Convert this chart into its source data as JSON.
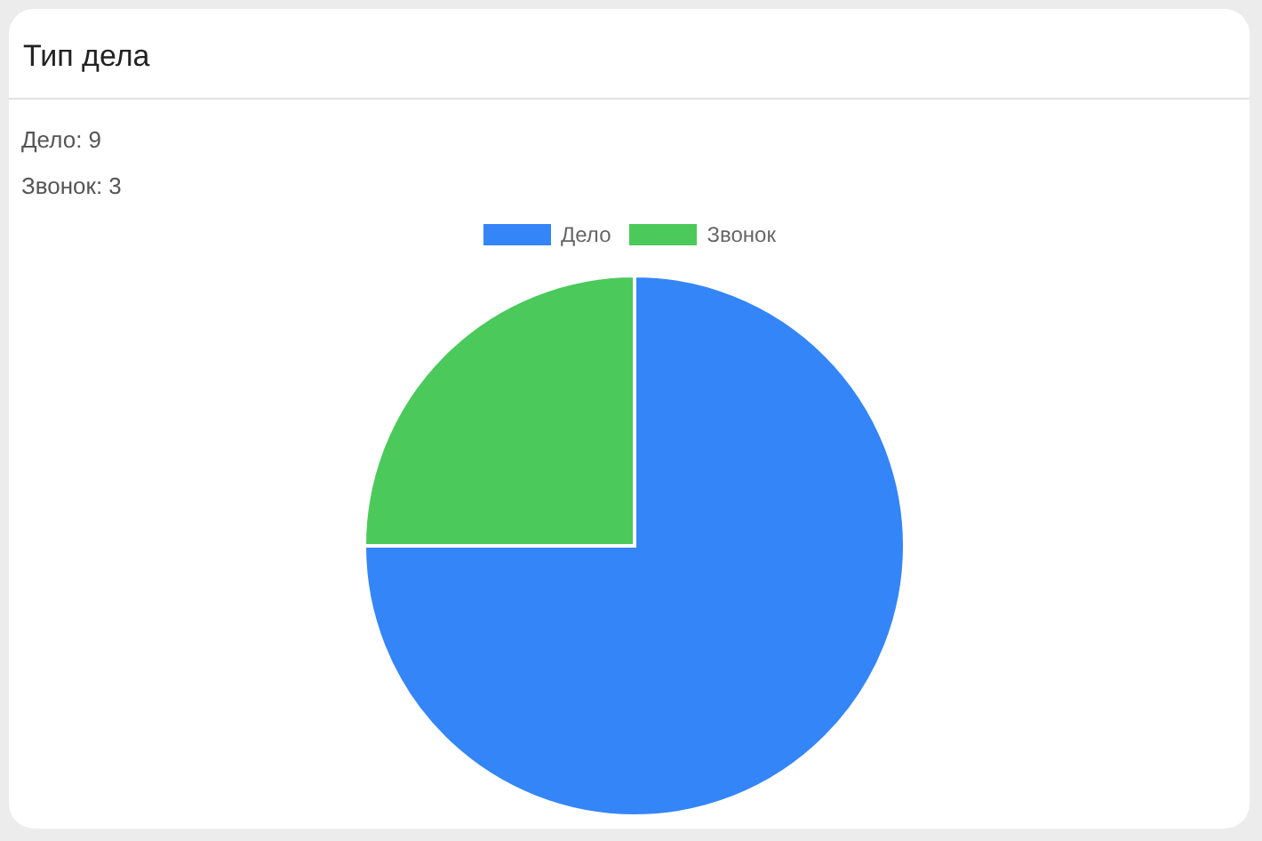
{
  "chart_data": {
    "type": "pie",
    "title": "Тип дела",
    "annotations": [
      "Дело: 9",
      "Звонок: 3"
    ],
    "categories": [
      "Дело",
      "Звонок"
    ],
    "values": [
      75,
      25
    ],
    "colors": [
      "#3485f7",
      "#4cc95b"
    ],
    "legend": "top"
  }
}
